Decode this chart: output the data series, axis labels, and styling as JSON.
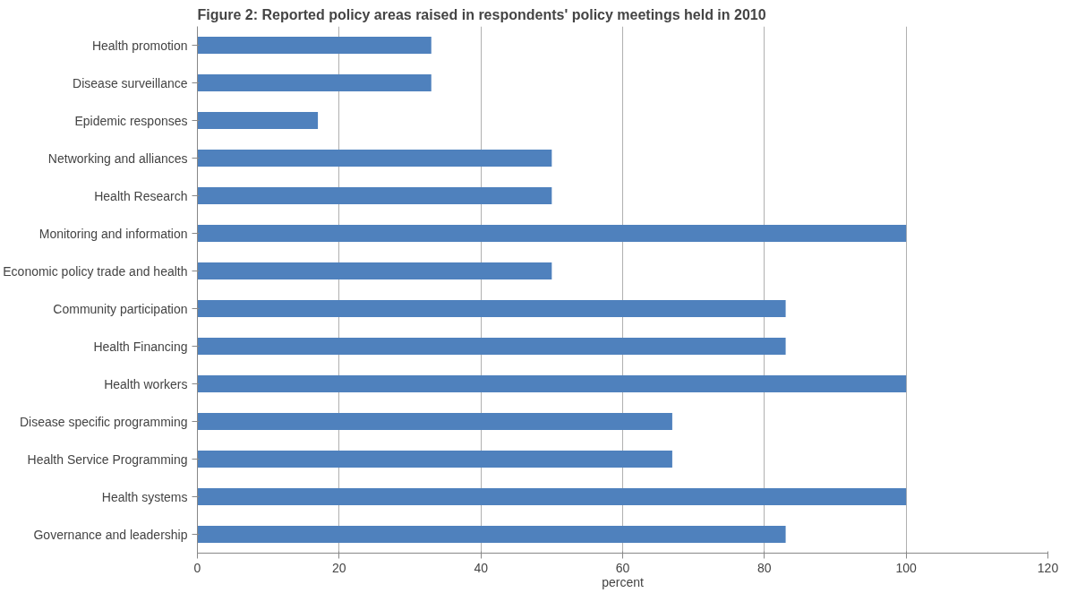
{
  "chart_data": {
    "type": "bar",
    "orientation": "horizontal",
    "title": "Figure 2: Reported policy areas raised in respondents' policy meetings held in 2010",
    "xlabel": "percent",
    "categories": [
      "Health promotion",
      "Disease surveillance",
      "Epidemic responses",
      "Networking and alliances",
      "Health Research",
      "Monitoring and information",
      "Economic policy trade and health",
      "Community participation",
      "Health Financing",
      "Health workers",
      "Disease specific programming",
      "Health Service Programming",
      "Health systems",
      "Governance and leadership"
    ],
    "values": [
      33,
      33,
      17,
      50,
      50,
      100,
      50,
      83,
      83,
      100,
      67,
      67,
      100,
      83
    ],
    "color": "#4f81bd",
    "xlim": [
      0,
      120
    ],
    "xticks": [
      0,
      20,
      40,
      60,
      80,
      100,
      120
    ],
    "grid": "x"
  }
}
